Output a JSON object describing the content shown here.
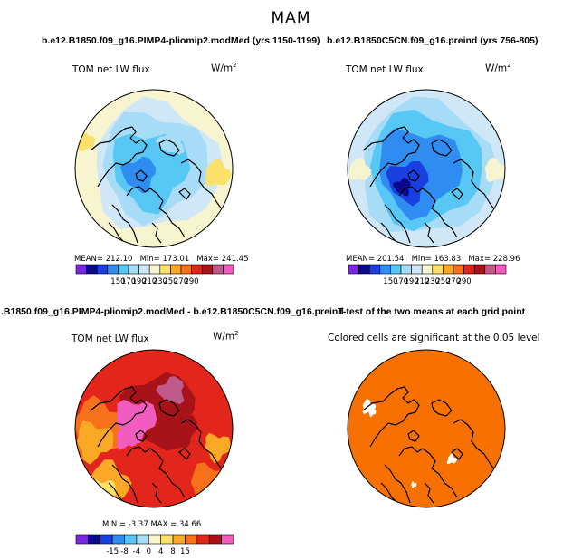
{
  "figure": {
    "title": "MAM"
  },
  "chart_data": [
    {
      "type": "heatmap",
      "title": "b.e12.B1850.f09_g16.PIMP4-pliomip2.modMed (yrs 1150-1199)",
      "variable": "TOM net LW flux",
      "units_base": "W/m",
      "units_exp": "2",
      "stats": {
        "mean_label": "MEAN=",
        "mean": "212.10",
        "min_label": "Min=",
        "min": "173.01",
        "max_label": "Max=",
        "max": "241.45"
      },
      "colorbar": {
        "labels": [
          "150",
          "170",
          "190",
          "210",
          "230",
          "250",
          "270",
          "290"
        ],
        "colors": [
          "#7a28e0",
          "#0c0a8c",
          "#1a3fe0",
          "#2f8cf0",
          "#57c8f5",
          "#a7dcf7",
          "#d0e7f8",
          "#f7f4d0",
          "#fbe06a",
          "#fba827",
          "#f7701a",
          "#e3261c",
          "#a8131a",
          "#c05a8a",
          "#f25cbf"
        ]
      },
      "field": "north polar stereographic, values mostly 190-230 W/m2 over Arctic Ocean, 230-250 at margins"
    },
    {
      "type": "heatmap",
      "title": "b.e12.B1850C5CN.f09_g16.preind (yrs 756-805)",
      "variable": "TOM net LW flux",
      "units_base": "W/m",
      "units_exp": "2",
      "stats": {
        "mean_label": "MEAN=",
        "mean": "201.54",
        "min_label": "Min=",
        "min": "163.83",
        "max_label": "Max=",
        "max": "228.96"
      },
      "colorbar": {
        "labels": [
          "150",
          "170",
          "190",
          "210",
          "230",
          "250",
          "270",
          "290"
        ],
        "colors": [
          "#7a28e0",
          "#0c0a8c",
          "#1a3fe0",
          "#2f8cf0",
          "#57c8f5",
          "#a7dcf7",
          "#d0e7f8",
          "#f7f4d0",
          "#fbe06a",
          "#fba827",
          "#f7701a",
          "#e3261c",
          "#a8131a",
          "#c05a8a",
          "#f25cbf"
        ]
      },
      "field": "north polar stereographic, values mostly 170-210 W/m2 over Arctic, minimum near Greenland"
    },
    {
      "type": "heatmap",
      "title": ".B1850.f09_g16.PIMP4-pliomip2.modMed - b.e12.B1850C5CN.f09_g16.preind",
      "variable": "TOM net LW flux",
      "units_base": "W/m",
      "units_exp": "2",
      "stats": {
        "min_label": "MIN =",
        "min": "-3.37",
        "max_label": "MAX =",
        "max": "34.66"
      },
      "colorbar": {
        "labels": [
          "-15",
          "-8",
          "-4",
          "0",
          "4",
          "8",
          "15"
        ],
        "colors": [
          "#7a28e0",
          "#0c0a8c",
          "#1a3fe0",
          "#2f8cf0",
          "#57c8f5",
          "#a7dcf7",
          "#f7f4d0",
          "#fbe06a",
          "#fba827",
          "#f7701a",
          "#e3261c",
          "#a8131a",
          "#f25cbf"
        ]
      },
      "field": "difference field, mostly positive 4-15 W/m2, highest (>15) over central Arctic"
    },
    {
      "type": "heatmap",
      "title": "T-test of the two means at each grid point",
      "annotation": "Colored cells are significant at the 0.05 level",
      "fill_color": "#f77000",
      "field": "nearly all cells significant, small white patches"
    }
  ]
}
